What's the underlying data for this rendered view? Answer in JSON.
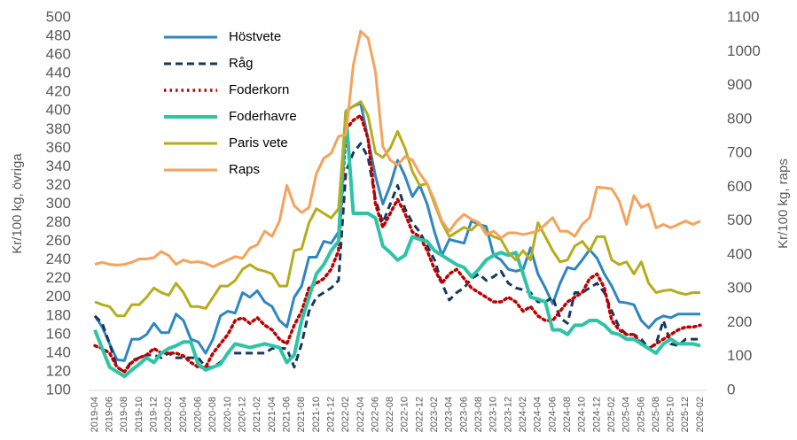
{
  "chart_data": {
    "type": "line",
    "y_label": "Kr/100 kg, övriga",
    "y2_label": "Kr/100 kg, raps",
    "categories": [
      "2019-04",
      null,
      "2019-06",
      null,
      "2019-08",
      null,
      "2019-10",
      null,
      "2019-12",
      null,
      "2020-02",
      null,
      "2020-04",
      null,
      "2020-06",
      null,
      "2020-08",
      null,
      "2020-10",
      null,
      "2020-12",
      null,
      "2021-02",
      null,
      "2021-04",
      null,
      "2021-06",
      null,
      "2021-08",
      null,
      "2021-10",
      null,
      "2021-12",
      null,
      "2022-02",
      null,
      "2022-04",
      null,
      "2022-06",
      null,
      "2022-08",
      null,
      "2022-10",
      null,
      "2022-12",
      null,
      "2023-02",
      null,
      "2023-04",
      null,
      "2023-06",
      null,
      "2023-08",
      null,
      "2023-10",
      null,
      "2023-12",
      null,
      "2024-02",
      null,
      "2024-04",
      null,
      "2024-06",
      null,
      "2024-08",
      null,
      "2024-10",
      null,
      "2024-12",
      null,
      "2025-02",
      null,
      "2025-04",
      null,
      "2025-06",
      null,
      "2025-08",
      null,
      "2025-10",
      null,
      "2025-12",
      null,
      "2026-02"
    ],
    "ylim": [
      100,
      500
    ],
    "yticks": [
      100,
      120,
      140,
      160,
      180,
      200,
      220,
      240,
      260,
      280,
      300,
      320,
      340,
      360,
      380,
      400,
      420,
      440,
      460,
      480,
      500
    ],
    "y2lim": [
      0,
      1100
    ],
    "y2ticks": [
      0,
      100,
      200,
      300,
      400,
      500,
      600,
      700,
      800,
      900,
      1000,
      1100
    ],
    "grid": false,
    "legend": "upper-left",
    "series": [
      {
        "name": "Höstvete",
        "color": "#2e86c1",
        "dash": "solid",
        "values": [
          180,
          168,
          150,
          133,
          132,
          155,
          155,
          160,
          172,
          162,
          162,
          182,
          175,
          155,
          152,
          140,
          155,
          180,
          185,
          183,
          205,
          200,
          207,
          195,
          190,
          175,
          168,
          200,
          212,
          243,
          243,
          260,
          258,
          270,
          400,
          405,
          408,
          370,
          330,
          300,
          320,
          347,
          330,
          308,
          320,
          300,
          270,
          245,
          262,
          260,
          258,
          282,
          278,
          276,
          245,
          240,
          230,
          228,
          230,
          253,
          225,
          210,
          193,
          215,
          232,
          230,
          240,
          251,
          242,
          225,
          212,
          195,
          194,
          192,
          175,
          167,
          176,
          180,
          178,
          182,
          182,
          182,
          182
        ]
      },
      {
        "name": "Råg",
        "color": "#17375e",
        "dash": "dashed",
        "values": [
          180,
          172,
          150,
          125,
          120,
          132,
          135,
          138,
          138,
          135,
          140,
          135,
          135,
          135,
          135,
          125,
          125,
          130,
          140,
          140,
          140,
          140,
          140,
          140,
          145,
          145,
          145,
          125,
          150,
          185,
          200,
          205,
          210,
          218,
          335,
          355,
          365,
          350,
          305,
          280,
          300,
          320,
          295,
          280,
          270,
          255,
          240,
          215,
          197,
          205,
          210,
          220,
          225,
          218,
          222,
          228,
          215,
          210,
          208,
          205,
          195,
          195,
          200,
          178,
          172,
          205,
          205,
          210,
          215,
          205,
          185,
          168,
          160,
          160,
          155,
          145,
          150,
          175,
          150,
          148,
          155,
          155,
          155
        ]
      },
      {
        "name": "Foderkorn",
        "color": "#c00000",
        "dash": "dotted",
        "values": [
          148,
          145,
          140,
          125,
          120,
          130,
          135,
          138,
          145,
          140,
          140,
          140,
          137,
          130,
          125,
          125,
          140,
          150,
          160,
          175,
          178,
          172,
          178,
          170,
          165,
          155,
          150,
          170,
          185,
          210,
          215,
          220,
          230,
          250,
          380,
          390,
          395,
          370,
          300,
          275,
          290,
          305,
          290,
          270,
          265,
          250,
          230,
          215,
          225,
          230,
          220,
          210,
          205,
          200,
          195,
          195,
          200,
          195,
          185,
          190,
          180,
          175,
          175,
          185,
          195,
          200,
          205,
          220,
          225,
          210,
          175,
          165,
          160,
          160,
          150,
          145,
          150,
          155,
          160,
          165,
          168,
          168,
          170
        ]
      },
      {
        "name": "Foderhavre",
        "color": "#2ec4a6",
        "dash": "solid",
        "values": [
          165,
          145,
          125,
          120,
          115,
          122,
          128,
          135,
          130,
          140,
          145,
          148,
          152,
          152,
          128,
          122,
          125,
          128,
          140,
          150,
          148,
          146,
          148,
          150,
          148,
          146,
          130,
          138,
          175,
          200,
          225,
          235,
          250,
          260,
          398,
          290,
          290,
          290,
          285,
          255,
          248,
          240,
          245,
          265,
          262,
          260,
          250,
          245,
          240,
          235,
          232,
          222,
          230,
          240,
          245,
          248,
          245,
          248,
          225,
          200,
          198,
          195,
          165,
          165,
          160,
          170,
          170,
          175,
          175,
          170,
          162,
          160,
          155,
          155,
          150,
          145,
          140,
          150,
          155,
          150,
          150,
          150,
          148
        ]
      },
      {
        "name": "Paris vete",
        "color": "#b5ad1b",
        "dash": "solid",
        "values": [
          195,
          192,
          190,
          180,
          180,
          192,
          192,
          200,
          210,
          205,
          202,
          215,
          205,
          190,
          190,
          188,
          200,
          212,
          212,
          218,
          230,
          235,
          230,
          228,
          225,
          212,
          212,
          250,
          252,
          280,
          295,
          290,
          285,
          295,
          400,
          405,
          410,
          395,
          355,
          350,
          360,
          378,
          360,
          335,
          320,
          322,
          300,
          280,
          265,
          270,
          275,
          272,
          280,
          270,
          265,
          262,
          248,
          240,
          250,
          240,
          280,
          265,
          250,
          238,
          240,
          255,
          260,
          250,
          265,
          265,
          240,
          235,
          238,
          225,
          238,
          215,
          205,
          207,
          208,
          205,
          203,
          205,
          205
        ]
      },
      {
        "name": "Raps",
        "color": "#f5a35c",
        "dash": "solid",
        "axis": "y2",
        "values": [
          372,
          378,
          372,
          370,
          372,
          378,
          388,
          388,
          392,
          410,
          398,
          372,
          385,
          378,
          380,
          375,
          365,
          375,
          385,
          395,
          390,
          420,
          430,
          470,
          455,
          500,
          605,
          545,
          525,
          540,
          640,
          685,
          700,
          750,
          755,
          960,
          1060,
          1040,
          940,
          720,
          680,
          665,
          690,
          680,
          640,
          610,
          560,
          500,
          470,
          500,
          520,
          505,
          495,
          460,
          470,
          450,
          465,
          465,
          460,
          465,
          470,
          490,
          510,
          470,
          470,
          455,
          490,
          510,
          600,
          598,
          595,
          560,
          490,
          575,
          540,
          550,
          480,
          490,
          480,
          490,
          500,
          490,
          500
        ]
      }
    ]
  }
}
